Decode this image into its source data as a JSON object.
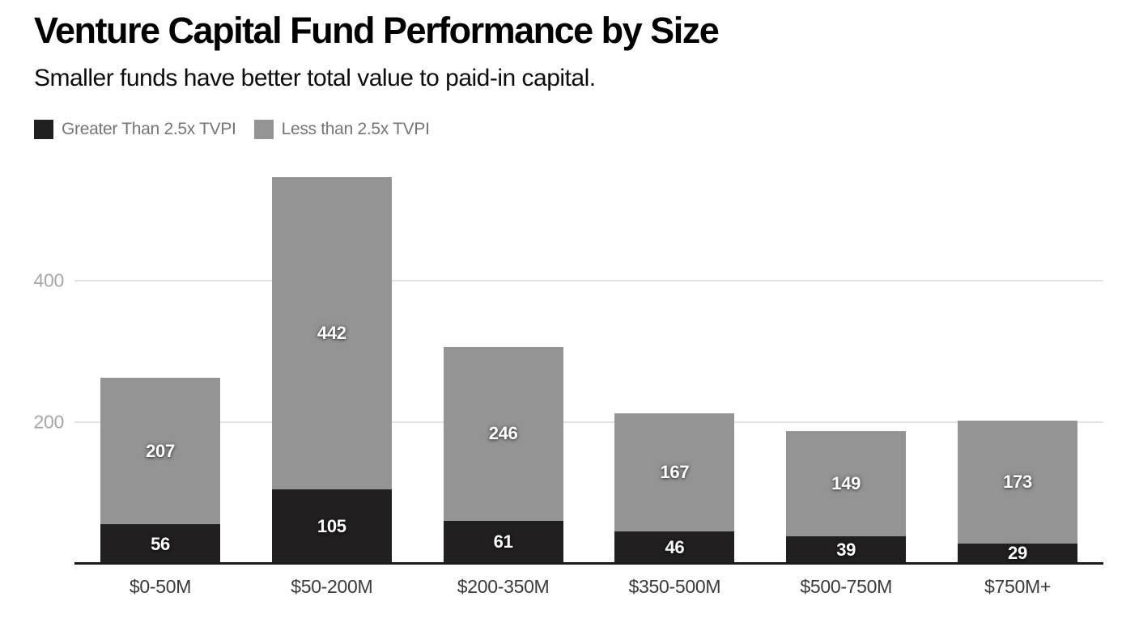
{
  "header": {
    "title": "Venture Capital Fund Performance by Size",
    "subtitle": "Smaller funds have better total value to paid-in capital."
  },
  "legend": {
    "items": [
      {
        "label": "Greater Than 2.5x TVPI",
        "color": "#221f20"
      },
      {
        "label": "Less than 2.5x TVPI",
        "color": "#949494"
      }
    ]
  },
  "chart_data": {
    "type": "bar",
    "stacked": true,
    "title": "Venture Capital Fund Performance by Size",
    "subtitle": "Smaller funds have better total value to paid-in capital.",
    "categories": [
      "$0-50M",
      "$50-200M",
      "$200-350M",
      "$350-500M",
      "$500-750M",
      "$750M+"
    ],
    "series": [
      {
        "name": "Greater Than 2.5x TVPI",
        "color": "#221f20",
        "values": [
          56,
          105,
          61,
          46,
          39,
          29
        ]
      },
      {
        "name": "Less than 2.5x TVPI",
        "color": "#949494",
        "values": [
          207,
          442,
          246,
          167,
          149,
          173
        ]
      }
    ],
    "totals": [
      263,
      547,
      307,
      213,
      188,
      202
    ],
    "yticks": [
      200,
      400
    ],
    "ylim": [
      0,
      580
    ],
    "xlabel": "",
    "ylabel": "",
    "grid": true,
    "legend_position": "top-left",
    "value_labels": "inside-segment"
  },
  "colors": {
    "background": "#ffffff",
    "grid": "#e2e2e2",
    "axis_line": "#1a1a1a",
    "ytick_label": "#a6a6a6",
    "xtick_label": "#3a3a3a",
    "value_label": "#ffffff",
    "legend_label": "#757575",
    "title": "#000000"
  }
}
